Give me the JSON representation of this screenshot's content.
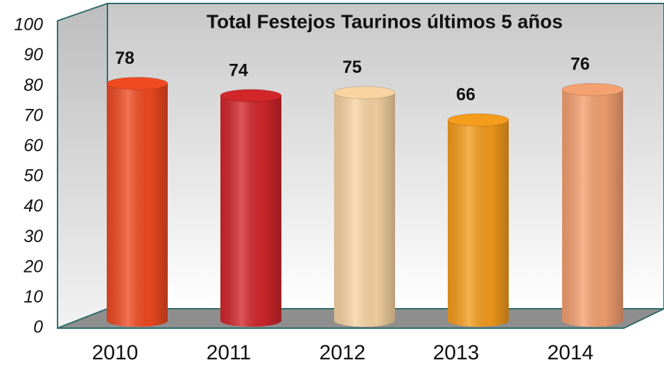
{
  "chart_data": {
    "type": "bar",
    "title": "Total Festejos Taurinos últimos 5 años",
    "categories": [
      "2010",
      "2011",
      "2012",
      "2013",
      "2014"
    ],
    "values": [
      78,
      74,
      75,
      66,
      76
    ],
    "colors": [
      "#f04a22",
      "#d2262b",
      "#f7d4a2",
      "#f59c1c",
      "#f5a070"
    ],
    "ylim": [
      0,
      100
    ],
    "yticks": [
      0,
      10,
      20,
      30,
      40,
      50,
      60,
      70,
      80,
      90,
      100
    ]
  }
}
